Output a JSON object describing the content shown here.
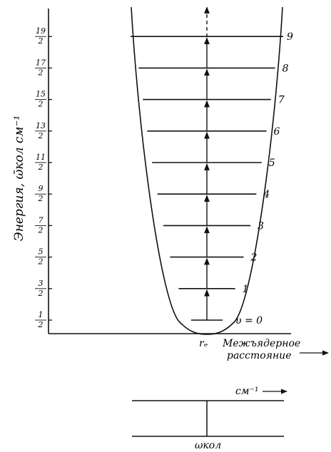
{
  "ylabel": "Энергия, ω̄кол  см⁻¹",
  "y_ticks": [
    {
      "num": "1",
      "den": "2"
    },
    {
      "num": "3",
      "den": "2"
    },
    {
      "num": "5",
      "den": "2"
    },
    {
      "num": "7",
      "den": "2"
    },
    {
      "num": "9",
      "den": "2"
    },
    {
      "num": "11",
      "den": "2"
    },
    {
      "num": "13",
      "den": "2"
    },
    {
      "num": "15",
      "den": "2"
    },
    {
      "num": "17",
      "den": "2"
    },
    {
      "num": "19",
      "den": "2"
    }
  ],
  "levels": [
    "υ = 0",
    "1",
    "2",
    "3",
    "4",
    "5",
    "6",
    "7",
    "8",
    "9"
  ],
  "xlabel": {
    "line1": "Межъядерное",
    "line2": "расстояние"
  },
  "re_label": "rₑ",
  "spectrum": {
    "unit_label": "см⁻¹",
    "line_label": "ωкол"
  }
}
